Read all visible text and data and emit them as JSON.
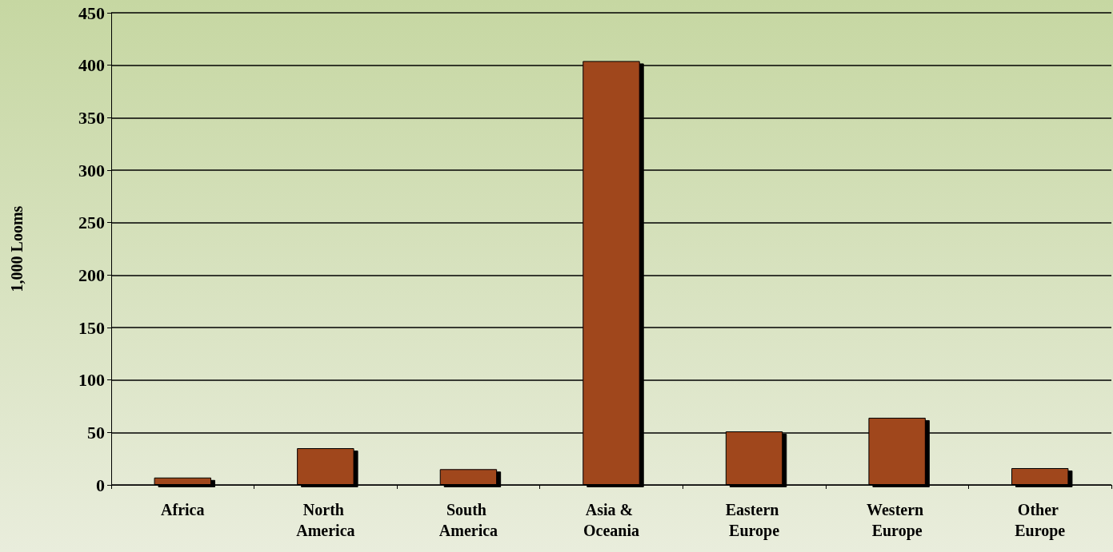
{
  "chart_data": {
    "type": "bar",
    "ylabel": "1,000 Looms",
    "categories": [
      "Africa",
      "North America",
      "South America",
      "Asia & Oceania",
      "Eastern Europe",
      "Western Europe",
      "Other Europe"
    ],
    "values": [
      7,
      35,
      15,
      404,
      51,
      64,
      16
    ],
    "color": "#a0461a",
    "ylim": [
      0,
      450
    ],
    "yticks": [
      0,
      50,
      100,
      150,
      200,
      250,
      300,
      350,
      400,
      450
    ],
    "grid": "y"
  }
}
